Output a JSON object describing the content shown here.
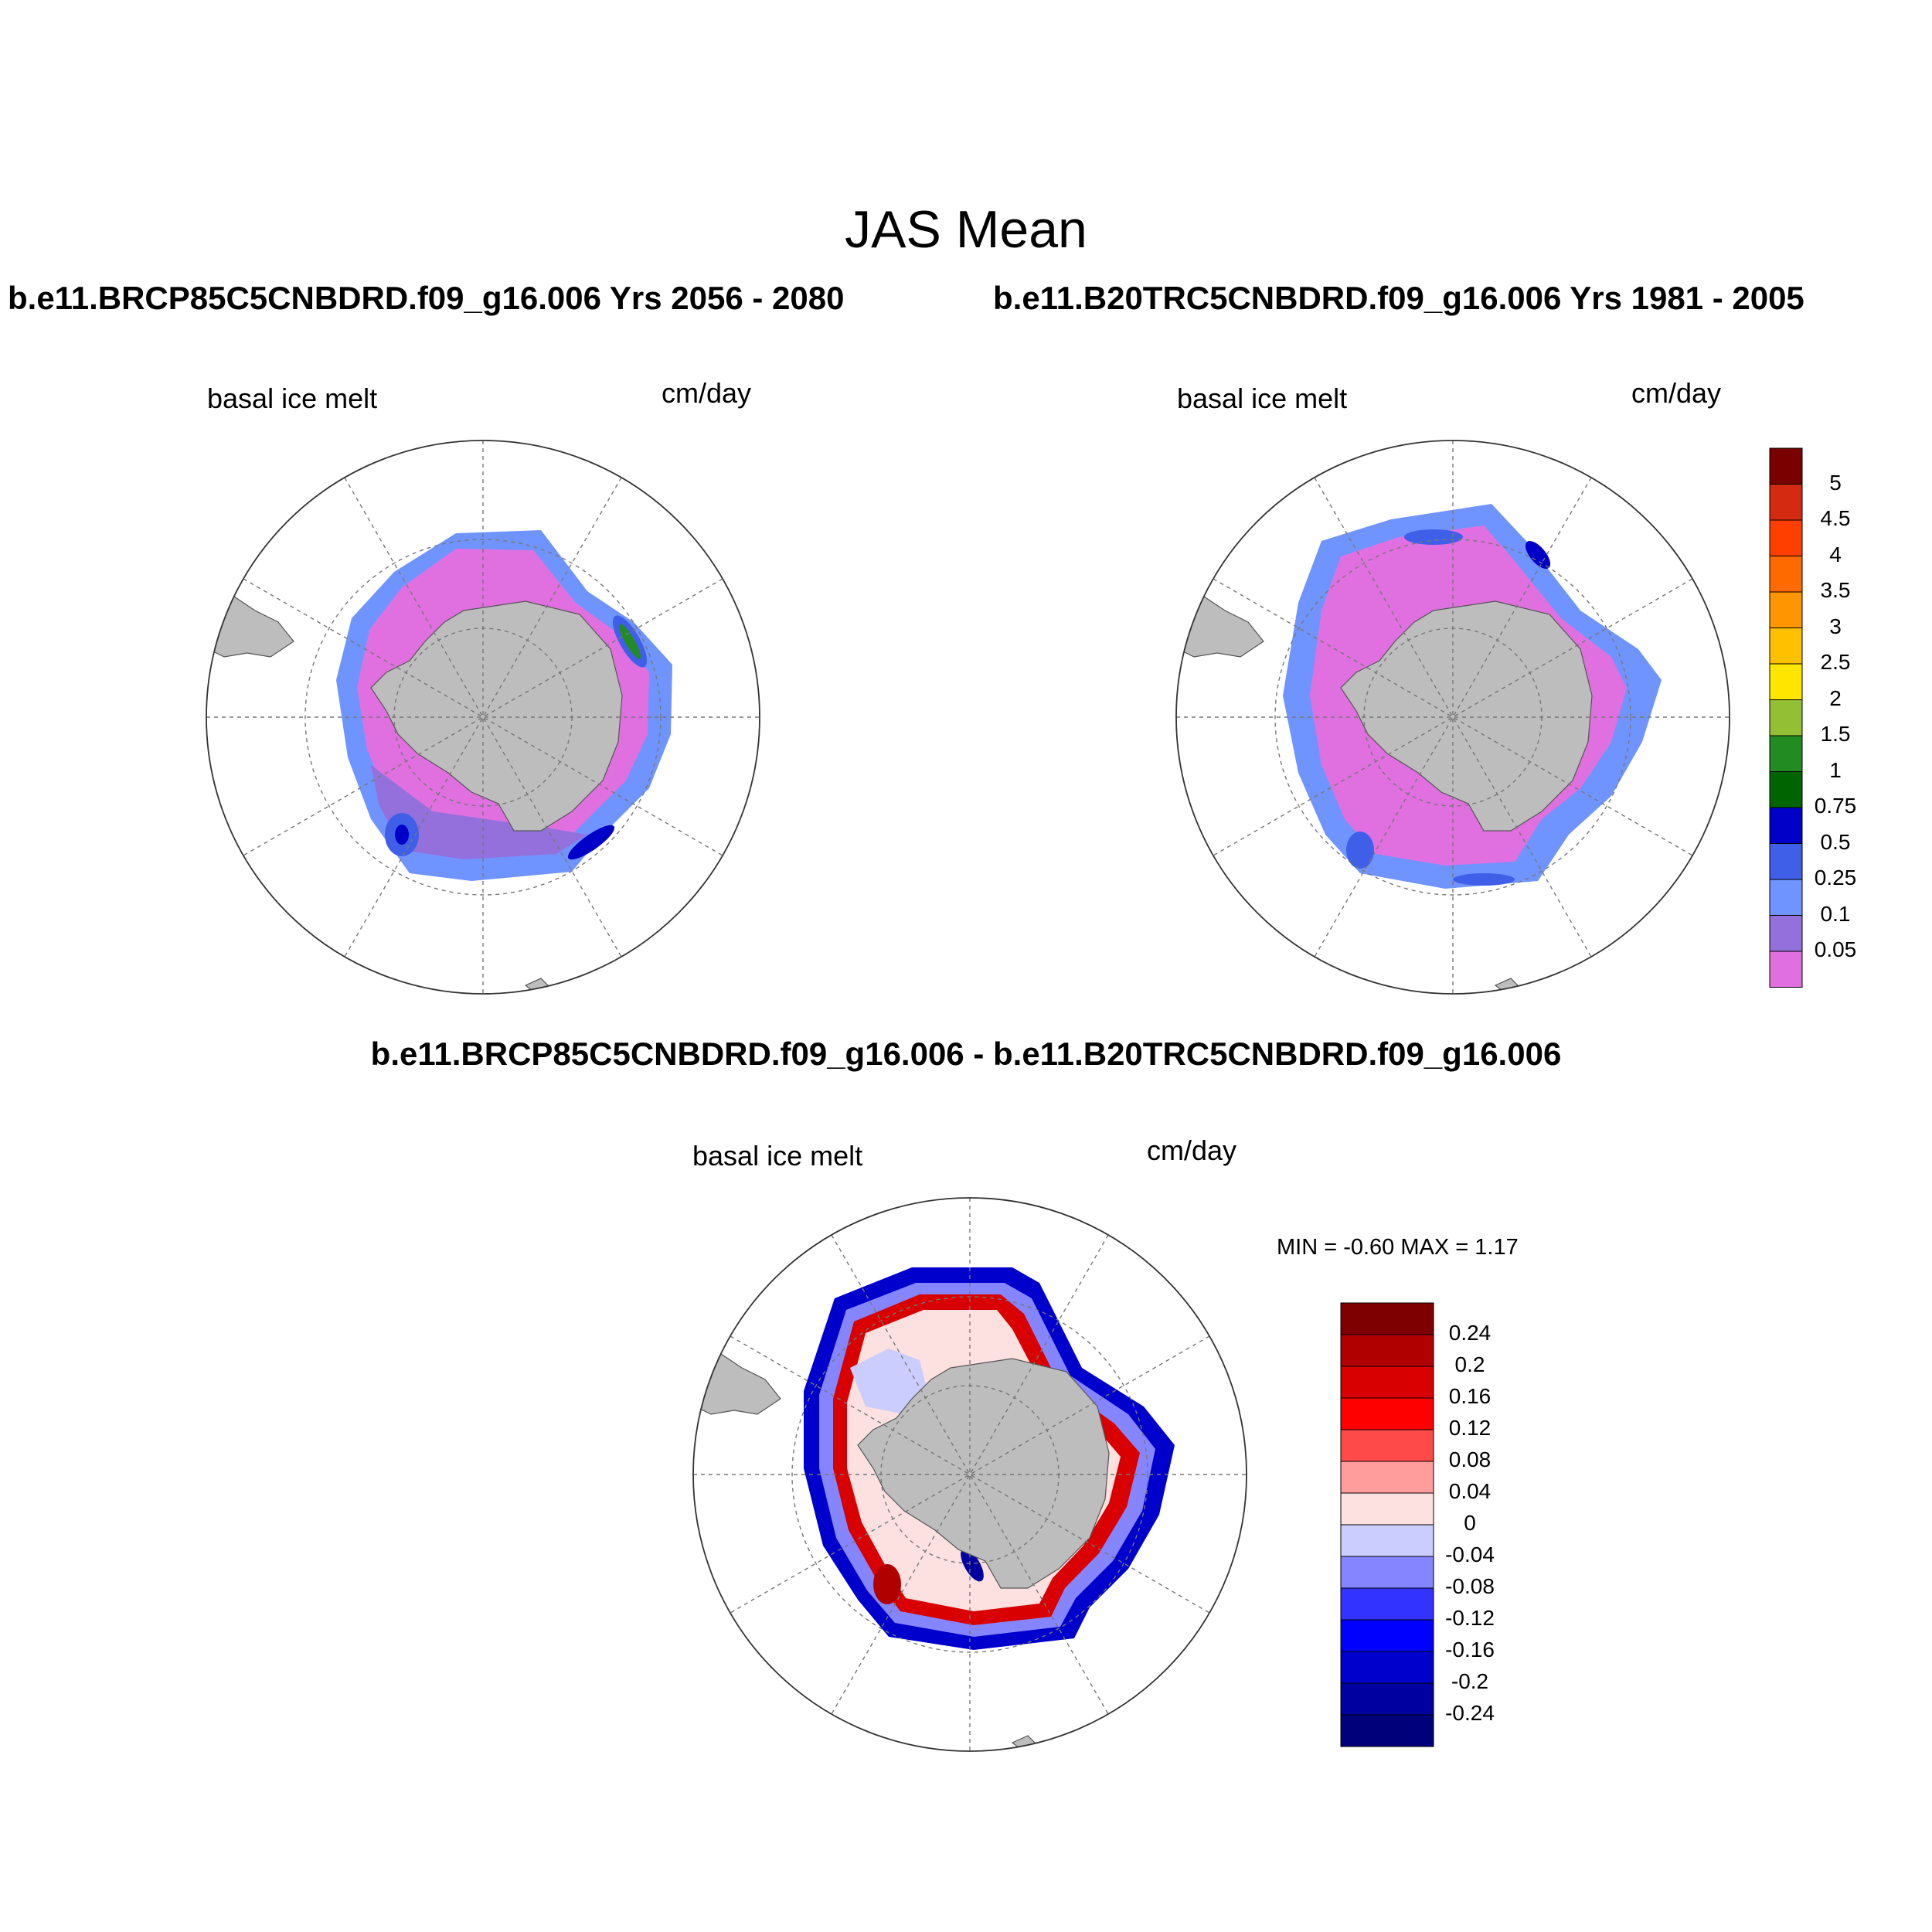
{
  "figure": {
    "title": "JAS Mean",
    "left_run": "b.e11.BRCP85C5CNBDRD.f09_g16.006  Yrs 2056 - 2080",
    "right_run": "b.e11.B20TRC5CNBDRD.f09_g16.006  Yrs 1981 - 2005",
    "diff_title": "b.e11.BRCP85C5CNBDRD.f09_g16.006 - b.e11.B20TRC5CNBDRD.f09_g16.006"
  },
  "panels": [
    {
      "variable": "basal ice melt",
      "units": "cm/day"
    },
    {
      "variable": "basal ice melt",
      "units": "cm/day"
    },
    {
      "variable": "basal ice melt",
      "units": "cm/day",
      "min_max": "MIN =  -0.60 MAX =   1.17"
    }
  ],
  "colorbar_abs": {
    "levels": [
      "5",
      "4.5",
      "4",
      "3.5",
      "3",
      "2.5",
      "2",
      "1.5",
      "1",
      "0.75",
      "0.5",
      "0.25",
      "0.1",
      "0.05"
    ],
    "colors": [
      "#7a0000",
      "#d42a12",
      "#ff3f00",
      "#ff6a00",
      "#ff9500",
      "#ffc000",
      "#ffe600",
      "#92bf33",
      "#228b22",
      "#006400",
      "#0000c8",
      "#3f5fe8",
      "#6f94ff",
      "#9370db",
      "#e070e0"
    ]
  },
  "colorbar_diff": {
    "levels": [
      "0.24",
      "0.2",
      "0.16",
      "0.12",
      "0.08",
      "0.04",
      "0",
      "-0.04",
      "-0.08",
      "-0.12",
      "-0.16",
      "-0.2",
      "-0.24"
    ],
    "colors": [
      "#7f0000",
      "#b00000",
      "#d80000",
      "#ff0000",
      "#ff4a4a",
      "#ff9d9d",
      "#fde0e0",
      "#cccdff",
      "#8585ff",
      "#3333ff",
      "#0000ff",
      "#0000cc",
      "#0000a0",
      "#00007a"
    ]
  }
}
